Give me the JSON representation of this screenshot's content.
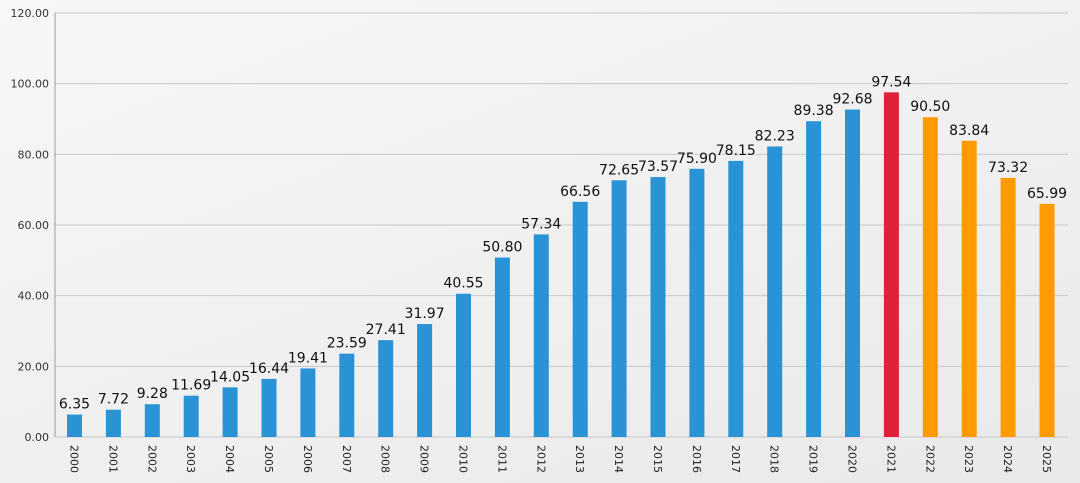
{
  "chart_data": {
    "type": "bar",
    "title": "",
    "xlabel": "",
    "ylabel": "",
    "ylim": [
      0,
      120
    ],
    "yticks": [
      "0.00",
      "20.00",
      "40.00",
      "60.00",
      "80.00",
      "100.00",
      "120.00"
    ],
    "grid": true,
    "categories": [
      "2000",
      "2001",
      "2002",
      "2003",
      "2004",
      "2005",
      "2006",
      "2007",
      "2008",
      "2009",
      "2010",
      "2011",
      "2012",
      "2013",
      "2014",
      "2015",
      "2016",
      "2017",
      "2018",
      "2019",
      "2020",
      "2021",
      "2022",
      "2023",
      "2024",
      "2025"
    ],
    "values": [
      6.35,
      7.72,
      9.28,
      11.69,
      14.05,
      16.44,
      19.41,
      23.59,
      27.41,
      31.97,
      40.55,
      50.8,
      57.34,
      66.56,
      72.65,
      73.57,
      75.9,
      78.15,
      82.23,
      89.38,
      92.68,
      97.54,
      90.5,
      83.84,
      73.32,
      65.99
    ],
    "labels": [
      "6.35",
      "7.72",
      "9.28",
      "11.69",
      "14.05",
      "16.44",
      "19.41",
      "23.59",
      "27.41",
      "31.97",
      "40.55",
      "50.80",
      "57.34",
      "66.56",
      "72.65",
      "73.57",
      "75.90",
      "78.15",
      "82.23",
      "89.38",
      "92.68",
      "97.54",
      "90.50",
      "83.84",
      "73.32",
      "65.99"
    ],
    "bar_groups": [
      "actual",
      "actual",
      "actual",
      "actual",
      "actual",
      "actual",
      "actual",
      "actual",
      "actual",
      "actual",
      "actual",
      "actual",
      "actual",
      "actual",
      "actual",
      "actual",
      "actual",
      "actual",
      "actual",
      "actual",
      "actual",
      "peak",
      "projected",
      "projected",
      "projected",
      "projected"
    ],
    "colors": {
      "actual": "#2a93d5",
      "peak": "#e0203a",
      "projected": "#ff9a00"
    }
  }
}
